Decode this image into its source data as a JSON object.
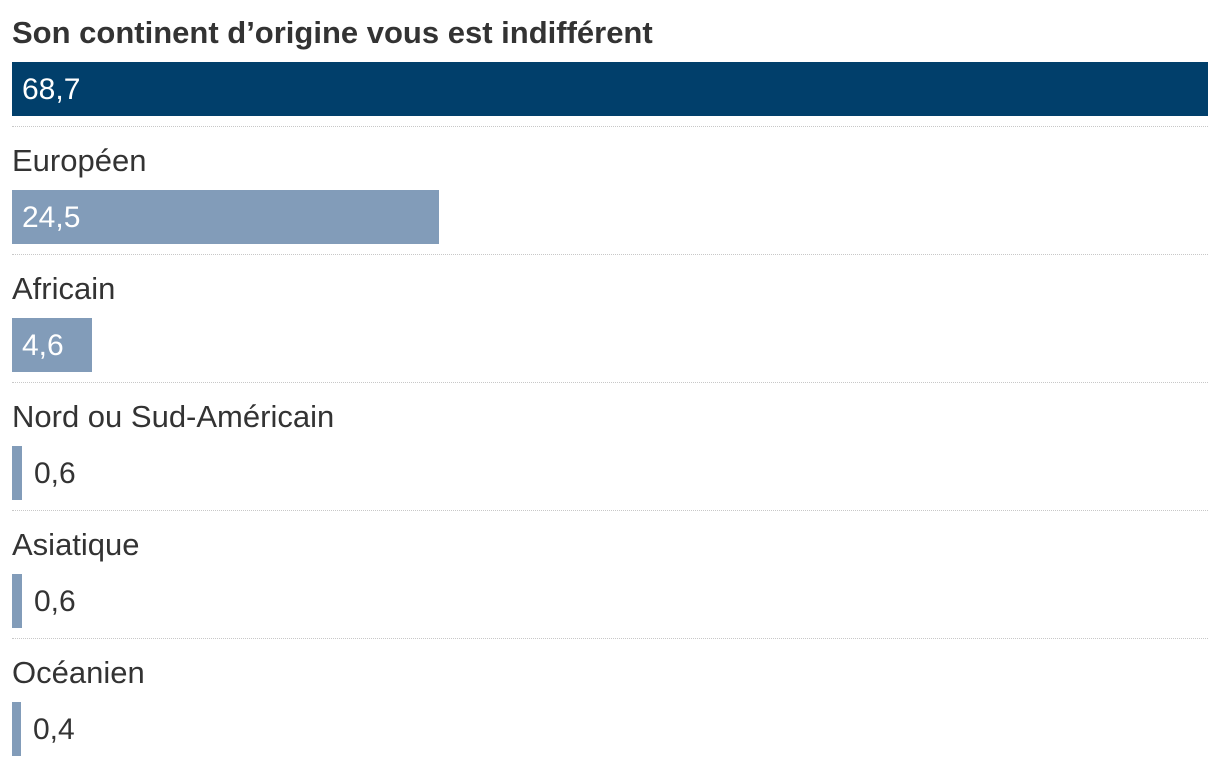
{
  "chart_data": {
    "type": "bar",
    "orientation": "horizontal",
    "categories": [
      "Son continent d’origine vous est indifférent",
      "Européen",
      "Africain",
      "Nord ou Sud-Américain",
      "Asiatique",
      "Océanien"
    ],
    "values": [
      68.7,
      24.5,
      4.6,
      0.6,
      0.6,
      0.4
    ],
    "value_labels": [
      "68,7",
      "24,5",
      "4,6",
      "0,6",
      "0,6",
      "0,4"
    ],
    "xlim": [
      0,
      68.7
    ],
    "grid": false,
    "legend": "none",
    "colors": {
      "highlight": "#013f6b",
      "default": "#829cb9",
      "text": "#333333",
      "separator": "#c8c8c8"
    }
  }
}
